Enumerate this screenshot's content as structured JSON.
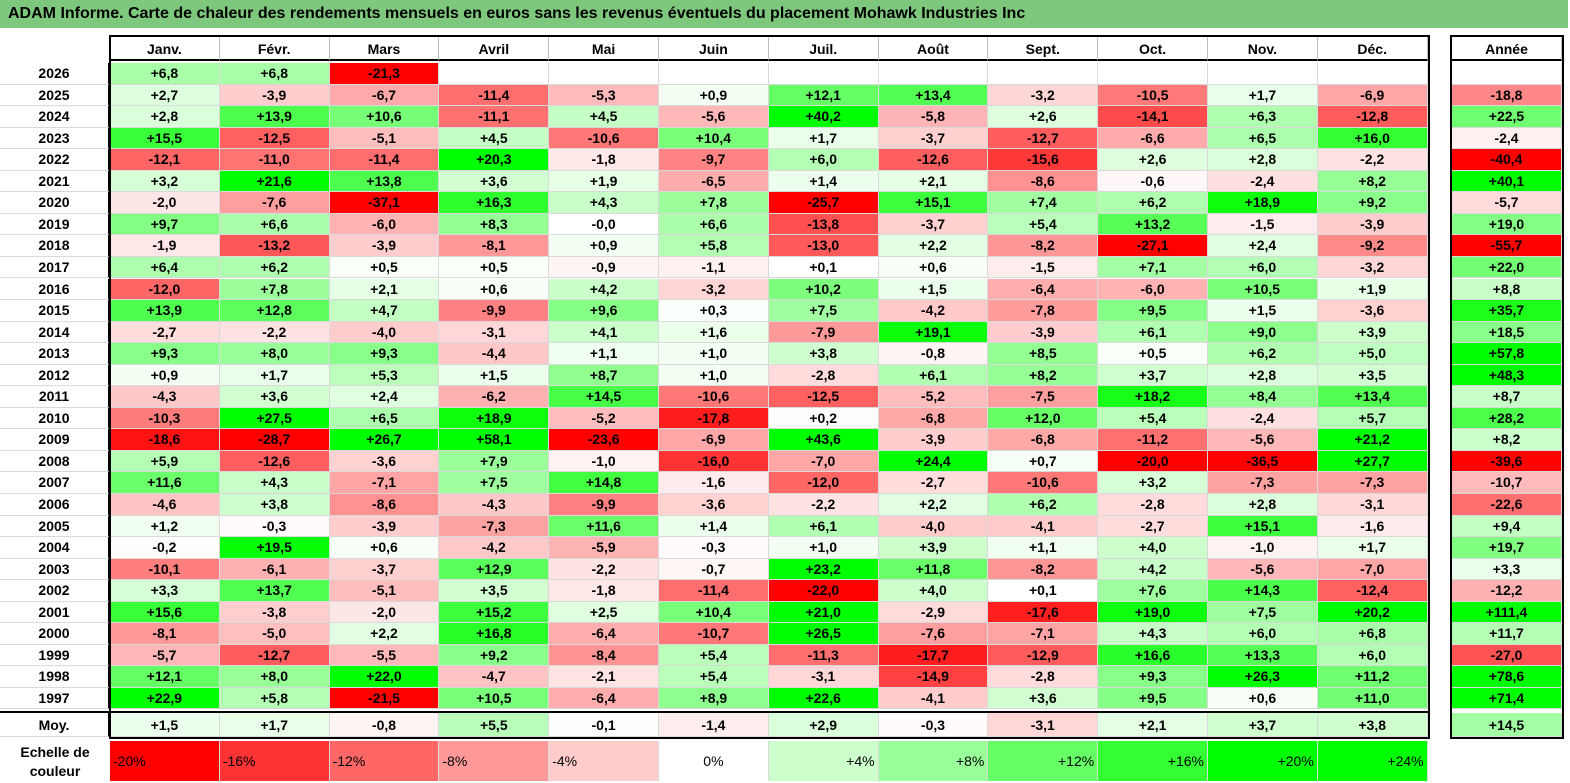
{
  "title": "ADAM Informe. Carte de chaleur des rendements mensuels en euros sans les revenus éventuels du placement Mohawk Industries Inc",
  "chart_data": {
    "type": "heatmap",
    "title": "ADAM Informe. Carte de chaleur des rendements mensuels en euros sans les revenus éventuels du placement Mohawk Industries Inc",
    "columns": [
      "Janv.",
      "Févr.",
      "Mars",
      "Avril",
      "Mai",
      "Juin",
      "Juil.",
      "Août",
      "Sept.",
      "Oct.",
      "Nov.",
      "Déc."
    ],
    "year_column_label": "Année",
    "rows": [
      {
        "label": "2026",
        "values": [
          "+6,8",
          "+6,8",
          "-21,3",
          "",
          "",
          "",
          "",
          "",
          "",
          "",
          "",
          ""
        ],
        "year": ""
      },
      {
        "label": "2025",
        "values": [
          "+2,7",
          "-3,9",
          "-6,7",
          "-11,4",
          "-5,3",
          "+0,9",
          "+12,1",
          "+13,4",
          "-3,2",
          "-10,5",
          "+1,7",
          "-6,9"
        ],
        "year": "-18,8"
      },
      {
        "label": "2024",
        "values": [
          "+2,8",
          "+13,9",
          "+10,6",
          "-11,1",
          "+4,5",
          "-5,6",
          "+40,2",
          "-5,8",
          "+2,6",
          "-14,1",
          "+6,3",
          "-12,8"
        ],
        "year": "+22,5"
      },
      {
        "label": "2023",
        "values": [
          "+15,5",
          "-12,5",
          "-5,1",
          "+4,5",
          "-10,6",
          "+10,4",
          "+1,7",
          "-3,7",
          "-12,7",
          "-6,6",
          "+6,5",
          "+16,0"
        ],
        "year": "-2,4"
      },
      {
        "label": "2022",
        "values": [
          "-12,1",
          "-11,0",
          "-11,4",
          "+20,3",
          "-1,8",
          "-9,7",
          "+6,0",
          "-12,6",
          "-15,6",
          "+2,6",
          "+2,8",
          "-2,2"
        ],
        "year": "-40,4"
      },
      {
        "label": "2021",
        "values": [
          "+3,2",
          "+21,6",
          "+13,8",
          "+3,6",
          "+1,9",
          "-6,5",
          "+1,4",
          "+2,1",
          "-8,6",
          "-0,6",
          "-2,4",
          "+8,2"
        ],
        "year": "+40,1"
      },
      {
        "label": "2020",
        "values": [
          "-2,0",
          "-7,6",
          "-37,1",
          "+16,3",
          "+4,3",
          "+7,8",
          "-25,7",
          "+15,1",
          "+7,4",
          "+6,2",
          "+18,9",
          "+9,2"
        ],
        "year": "-5,7"
      },
      {
        "label": "2019",
        "values": [
          "+9,7",
          "+6,6",
          "-6,0",
          "+8,3",
          "-0,0",
          "+6,6",
          "-13,8",
          "-3,7",
          "+5,4",
          "+13,2",
          "-1,5",
          "-3,9"
        ],
        "year": "+19,0"
      },
      {
        "label": "2018",
        "values": [
          "-1,9",
          "-13,2",
          "-3,9",
          "-8,1",
          "+0,9",
          "+5,8",
          "-13,0",
          "+2,2",
          "-8,2",
          "-27,1",
          "+2,4",
          "-9,2"
        ],
        "year": "-55,7"
      },
      {
        "label": "2017",
        "values": [
          "+6,4",
          "+6,2",
          "+0,5",
          "+0,5",
          "-0,9",
          "-1,1",
          "+0,1",
          "+0,6",
          "-1,5",
          "+7,1",
          "+6,0",
          "-3,2"
        ],
        "year": "+22,0"
      },
      {
        "label": "2016",
        "values": [
          "-12,0",
          "+7,8",
          "+2,1",
          "+0,6",
          "+4,2",
          "-3,2",
          "+10,2",
          "+1,5",
          "-6,4",
          "-6,0",
          "+10,5",
          "+1,9"
        ],
        "year": "+8,8"
      },
      {
        "label": "2015",
        "values": [
          "+13,9",
          "+12,8",
          "+4,7",
          "-9,9",
          "+9,6",
          "+0,3",
          "+7,5",
          "-4,2",
          "-7,8",
          "+9,5",
          "+1,5",
          "-3,6"
        ],
        "year": "+35,7"
      },
      {
        "label": "2014",
        "values": [
          "-2,7",
          "-2,2",
          "-4,0",
          "-3,1",
          "+4,1",
          "+1,6",
          "-7,9",
          "+19,1",
          "-3,9",
          "+6,1",
          "+9,0",
          "+3,9"
        ],
        "year": "+18,5"
      },
      {
        "label": "2013",
        "values": [
          "+9,3",
          "+8,0",
          "+9,3",
          "-4,4",
          "+1,1",
          "+1,0",
          "+3,8",
          "-0,8",
          "+8,5",
          "+0,5",
          "+6,2",
          "+5,0"
        ],
        "year": "+57,8"
      },
      {
        "label": "2012",
        "values": [
          "+0,9",
          "+1,7",
          "+5,3",
          "+1,5",
          "+8,7",
          "+1,0",
          "-2,8",
          "+6,1",
          "+8,2",
          "+3,7",
          "+2,8",
          "+3,5"
        ],
        "year": "+48,3"
      },
      {
        "label": "2011",
        "values": [
          "-4,3",
          "+3,6",
          "+2,4",
          "-6,2",
          "+14,5",
          "-10,6",
          "-12,5",
          "-5,2",
          "-7,5",
          "+18,2",
          "+8,4",
          "+13,4"
        ],
        "year": "+8,7"
      },
      {
        "label": "2010",
        "values": [
          "-10,3",
          "+27,5",
          "+6,5",
          "+18,9",
          "-5,2",
          "-17,8",
          "+0,2",
          "-6,8",
          "+12,0",
          "+5,4",
          "-2,4",
          "+5,7"
        ],
        "year": "+28,2"
      },
      {
        "label": "2009",
        "values": [
          "-18,6",
          "-28,7",
          "+26,7",
          "+58,1",
          "-23,6",
          "-6,9",
          "+43,6",
          "-3,9",
          "-6,8",
          "-11,2",
          "-5,6",
          "+21,2"
        ],
        "year": "+8,2"
      },
      {
        "label": "2008",
        "values": [
          "+5,9",
          "-12,6",
          "-3,6",
          "+7,9",
          "-1,0",
          "-16,0",
          "-7,0",
          "+24,4",
          "+0,7",
          "-20,0",
          "-36,5",
          "+27,7"
        ],
        "year": "-39,6"
      },
      {
        "label": "2007",
        "values": [
          "+11,6",
          "+4,3",
          "-7,1",
          "+7,5",
          "+14,8",
          "-1,6",
          "-12,0",
          "-2,7",
          "-10,6",
          "+3,2",
          "-7,3",
          "-7,3"
        ],
        "year": "-10,7"
      },
      {
        "label": "2006",
        "values": [
          "-4,6",
          "+3,8",
          "-8,6",
          "-4,3",
          "-9,9",
          "-3,6",
          "-2,2",
          "+2,2",
          "+6,2",
          "-2,8",
          "+2,8",
          "-3,1"
        ],
        "year": "-22,6"
      },
      {
        "label": "2005",
        "values": [
          "+1,2",
          "-0,3",
          "-3,9",
          "-7,3",
          "+11,6",
          "+1,4",
          "+6,1",
          "-4,0",
          "-4,1",
          "-2,7",
          "+15,1",
          "-1,6"
        ],
        "year": "+9,4"
      },
      {
        "label": "2004",
        "values": [
          "-0,2",
          "+19,5",
          "+0,6",
          "-4,2",
          "-5,9",
          "-0,3",
          "+1,0",
          "+3,9",
          "+1,1",
          "+4,0",
          "-1,0",
          "+1,7"
        ],
        "year": "+19,7"
      },
      {
        "label": "2003",
        "values": [
          "-10,1",
          "-6,1",
          "-3,7",
          "+12,9",
          "-2,2",
          "-0,7",
          "+23,2",
          "+11,8",
          "-8,2",
          "+4,2",
          "-5,6",
          "-7,0"
        ],
        "year": "+3,3"
      },
      {
        "label": "2002",
        "values": [
          "+3,3",
          "+13,7",
          "-5,1",
          "+3,5",
          "-1,8",
          "-11,4",
          "-22,0",
          "+4,0",
          "+0,1",
          "+7,6",
          "+14,3",
          "-12,4"
        ],
        "year": "-12,2"
      },
      {
        "label": "2001",
        "values": [
          "+15,6",
          "-3,8",
          "-2,0",
          "+15,2",
          "+2,5",
          "+10,4",
          "+21,0",
          "-2,9",
          "-17,6",
          "+19,0",
          "+7,5",
          "+20,2"
        ],
        "year": "+111,4"
      },
      {
        "label": "2000",
        "values": [
          "-8,1",
          "-5,0",
          "+2,2",
          "+16,8",
          "-6,4",
          "-10,7",
          "+26,5",
          "-7,6",
          "-7,1",
          "+4,3",
          "+6,0",
          "+6,8"
        ],
        "year": "+11,7"
      },
      {
        "label": "1999",
        "values": [
          "-5,7",
          "-12,7",
          "-5,5",
          "+9,2",
          "-8,4",
          "+5,4",
          "-11,3",
          "-17,7",
          "-12,9",
          "+16,6",
          "+13,3",
          "+6,0"
        ],
        "year": "-27,0"
      },
      {
        "label": "1998",
        "values": [
          "+12,1",
          "+8,0",
          "+22,0",
          "-4,7",
          "-2,1",
          "+5,4",
          "-3,1",
          "-14,9",
          "-2,8",
          "+9,3",
          "+26,3",
          "+11,2"
        ],
        "year": "+78,6"
      },
      {
        "label": "1997",
        "values": [
          "+22,9",
          "+5,8",
          "-21,5",
          "+10,5",
          "-6,4",
          "+8,9",
          "+22,6",
          "-4,1",
          "+3,6",
          "+9,5",
          "+0,6",
          "+11,0"
        ],
        "year": "+71,4"
      }
    ],
    "average": {
      "label": "Moy.",
      "values": [
        "+1,5",
        "+1,7",
        "-0,8",
        "+5,5",
        "-0,1",
        "-1,4",
        "+2,9",
        "-0,3",
        "-3,1",
        "+2,1",
        "+3,7",
        "+3,8"
      ],
      "year": "+14,5"
    },
    "scale": {
      "label_line1": "Echelle de",
      "label_line2": "couleur",
      "steps": [
        "-20%",
        "-16%",
        "-12%",
        "-8%",
        "-4%",
        "0%",
        "+4%",
        "+8%",
        "+12%",
        "+16%",
        "+20%",
        "+24%"
      ]
    },
    "colors": {
      "negative": "#ff0000",
      "neutral": "#ffffff",
      "positive": "#00ff00",
      "title_bg": "#7dc87d"
    }
  }
}
